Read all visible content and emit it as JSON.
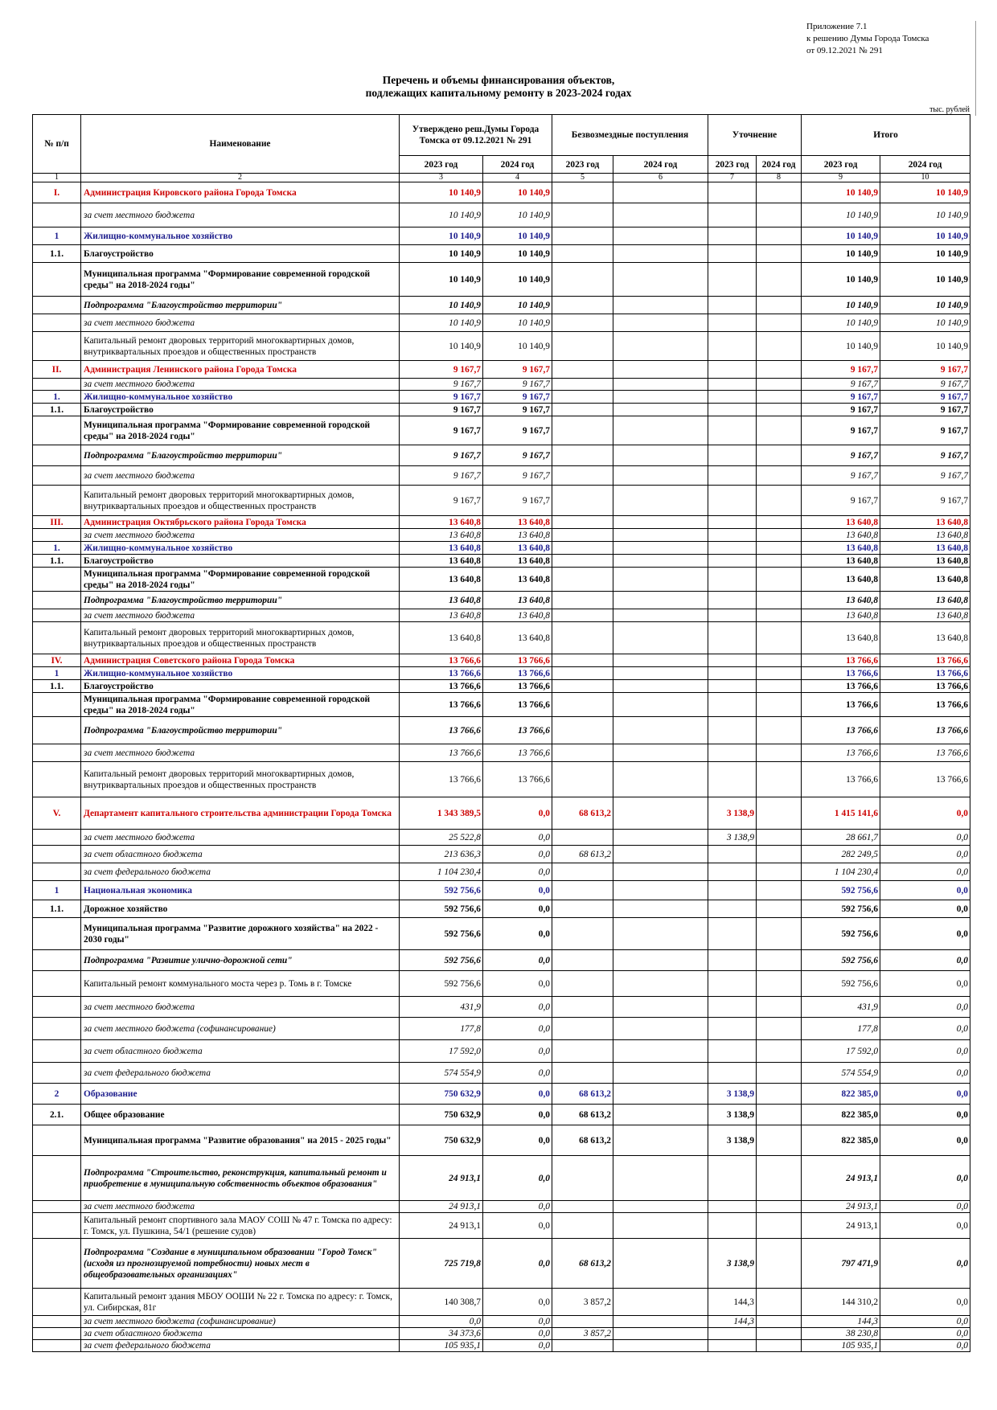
{
  "annex": {
    "line1": "Приложение 7.1",
    "line2": "к решению Думы Города Томска",
    "line3": "от  09.12.2021  № 291"
  },
  "title": {
    "line1": "Перечень и объемы финансирования объектов,",
    "line2": "подлежащих капитальному ремонту в 2023-2024 годах"
  },
  "units": "тыс. рублей",
  "header": {
    "col_no": "№ п/п",
    "col_name": "Наименование",
    "col_approved": "Утверждено реш.Думы Города Томска от 09.12.2021 № 291",
    "col_grants": "Безвозмездные поступления",
    "col_clarify": "Уточнение",
    "col_total": "Итого",
    "years": [
      "2023 год",
      "2024 год",
      "2023 год",
      "2024 год",
      "2023 год",
      "2024 год",
      "2023 год",
      "2024 год"
    ],
    "col_numbers": [
      "1",
      "2",
      "3",
      "4",
      "5",
      "6",
      "7",
      "8",
      "9",
      "10"
    ]
  },
  "rows": [
    {
      "s": "red",
      "h": 26,
      "no": "I.",
      "name": "Администрация Кировского района Города Томска",
      "v": [
        "10 140,9",
        "10 140,9",
        "",
        "",
        "",
        "",
        "10 140,9",
        "10 140,9"
      ]
    },
    {
      "s": "it",
      "h": 30,
      "no": "",
      "name": "за счет местного бюджета",
      "v": [
        "10 140,9",
        "10 140,9",
        "",
        "",
        "",
        "",
        "10 140,9",
        "10 140,9"
      ]
    },
    {
      "s": "blue",
      "h": 22,
      "no": "1",
      "name": "Жилищно-коммунальное хозяйство",
      "v": [
        "10 140,9",
        "10 140,9",
        "",
        "",
        "",
        "",
        "10 140,9",
        "10 140,9"
      ]
    },
    {
      "s": "bold",
      "h": 22,
      "no": "1.1.",
      "name": "Благоустройство",
      "v": [
        "10 140,9",
        "10 140,9",
        "",
        "",
        "",
        "",
        "10 140,9",
        "10 140,9"
      ]
    },
    {
      "s": "bold",
      "h": 42,
      "no": "",
      "name": "Муниципальная программа \"Формирование современной городской среды\" на 2018-2024 годы\"",
      "v": [
        "10 140,9",
        "10 140,9",
        "",
        "",
        "",
        "",
        "10 140,9",
        "10 140,9"
      ]
    },
    {
      "s": "bi",
      "h": 22,
      "no": "",
      "name": "Подпрограмма \"Благоустройство территории\"",
      "v": [
        "10 140,9",
        "10 140,9",
        "",
        "",
        "",
        "",
        "10 140,9",
        "10 140,9"
      ]
    },
    {
      "s": "it",
      "h": 22,
      "no": "",
      "name": "за счет местного бюджета",
      "v": [
        "10 140,9",
        "10 140,9",
        "",
        "",
        "",
        "",
        "10 140,9",
        "10 140,9"
      ]
    },
    {
      "s": "plain",
      "h": 36,
      "no": "",
      "name": "Капитальный ремонт дворовых территорий многоквартирных домов, внутриквартальных проездов и общественных пространств",
      "v": [
        "10 140,9",
        "10 140,9",
        "",
        "",
        "",
        "",
        "10 140,9",
        "10 140,9"
      ]
    },
    {
      "s": "red",
      "h": 22,
      "no": "II.",
      "name": "Администрация Ленинского района Города Томска",
      "v": [
        "9 167,7",
        "9 167,7",
        "",
        "",
        "",
        "",
        "9 167,7",
        "9 167,7"
      ]
    },
    {
      "s": "it",
      "h": 15,
      "no": "",
      "name": "за счет местного бюджета",
      "v": [
        "9 167,7",
        "9 167,7",
        "",
        "",
        "",
        "",
        "9 167,7",
        "9 167,7"
      ]
    },
    {
      "s": "blue",
      "h": 16,
      "no": "1.",
      "name": "Жилищно-коммунальное хозяйство",
      "v": [
        "9 167,7",
        "9 167,7",
        "",
        "",
        "",
        "",
        "9 167,7",
        "9 167,7"
      ]
    },
    {
      "s": "bold",
      "h": 16,
      "no": "1.1.",
      "name": "Благоустройство",
      "v": [
        "9 167,7",
        "9 167,7",
        "",
        "",
        "",
        "",
        "9 167,7",
        "9 167,7"
      ]
    },
    {
      "s": "bold",
      "h": 36,
      "no": "",
      "name": "Муниципальная программа \"Формирование современной городской среды\" на 2018-2024 годы\"",
      "v": [
        "9 167,7",
        "9 167,7",
        "",
        "",
        "",
        "",
        "9 167,7",
        "9 167,7"
      ]
    },
    {
      "s": "bi",
      "h": 26,
      "no": "",
      "name": "Подпрограмма \"Благоустройство территории\"",
      "v": [
        "9 167,7",
        "9 167,7",
        "",
        "",
        "",
        "",
        "9 167,7",
        "9 167,7"
      ]
    },
    {
      "s": "it",
      "h": 24,
      "no": "",
      "name": "за счет местного бюджета",
      "v": [
        "9 167,7",
        "9 167,7",
        "",
        "",
        "",
        "",
        "9 167,7",
        "9 167,7"
      ]
    },
    {
      "s": "plain",
      "h": 38,
      "no": "",
      "name": "Капитальный ремонт дворовых территорий многоквартирных домов, внутриквартальных проездов и общественных пространств",
      "v": [
        "9 167,7",
        "9 167,7",
        "",
        "",
        "",
        "",
        "9 167,7",
        "9 167,7"
      ]
    },
    {
      "s": "red",
      "h": 16,
      "no": "III.",
      "name": "Администрация Октябрьского района Города Томска",
      "v": [
        "13 640,8",
        "13 640,8",
        "",
        "",
        "",
        "",
        "13 640,8",
        "13 640,8"
      ]
    },
    {
      "s": "it",
      "h": 16,
      "no": "",
      "name": "за счет местного бюджета",
      "v": [
        "13 640,8",
        "13 640,8",
        "",
        "",
        "",
        "",
        "13 640,8",
        "13 640,8"
      ]
    },
    {
      "s": "blue",
      "h": 16,
      "no": "1.",
      "name": "Жилищно-коммунальное хозяйство",
      "v": [
        "13 640,8",
        "13 640,8",
        "",
        "",
        "",
        "",
        "13 640,8",
        "13 640,8"
      ]
    },
    {
      "s": "bold",
      "h": 16,
      "no": "1.1.",
      "name": "Благоустройство",
      "v": [
        "13 640,8",
        "13 640,8",
        "",
        "",
        "",
        "",
        "13 640,8",
        "13 640,8"
      ]
    },
    {
      "s": "bold",
      "h": 30,
      "no": "",
      "name": "Муниципальная программа \"Формирование современной городской среды\" на 2018-2024 годы\"",
      "v": [
        "13 640,8",
        "13 640,8",
        "",
        "",
        "",
        "",
        "13 640,8",
        "13 640,8"
      ]
    },
    {
      "s": "bi",
      "h": 22,
      "no": "",
      "name": "Подпрограмма \"Благоустройство территории\"",
      "v": [
        "13 640,8",
        "13 640,8",
        "",
        "",
        "",
        "",
        "13 640,8",
        "13 640,8"
      ]
    },
    {
      "s": "it",
      "h": 16,
      "no": "",
      "name": "за счет местного бюджета",
      "v": [
        "13 640,8",
        "13 640,8",
        "",
        "",
        "",
        "",
        "13 640,8",
        "13 640,8"
      ]
    },
    {
      "s": "plain",
      "h": 40,
      "no": "",
      "name": "Капитальный ремонт дворовых территорий многоквартирных домов, внутриквартальных проездов и общественных пространств",
      "v": [
        "13 640,8",
        "13 640,8",
        "",
        "",
        "",
        "",
        "13 640,8",
        "13 640,8"
      ]
    },
    {
      "s": "red",
      "h": 16,
      "no": "IV.",
      "name": "Администрация Советского района Города Томска",
      "v": [
        "13 766,6",
        "13 766,6",
        "",
        "",
        "",
        "",
        "13 766,6",
        "13 766,6"
      ]
    },
    {
      "s": "blue",
      "h": 16,
      "no": "1",
      "name": "Жилищно-коммунальное хозяйство",
      "v": [
        "13 766,6",
        "13 766,6",
        "",
        "",
        "",
        "",
        "13 766,6",
        "13 766,6"
      ]
    },
    {
      "s": "bold",
      "h": 16,
      "no": "1.1.",
      "name": "Благоустройство",
      "v": [
        "13 766,6",
        "13 766,6",
        "",
        "",
        "",
        "",
        "13 766,6",
        "13 766,6"
      ]
    },
    {
      "s": "bold",
      "h": 30,
      "no": "",
      "name": "Муниципальная программа \"Формирование современной городской среды\" на 2018-2024 годы\"",
      "v": [
        "13 766,6",
        "13 766,6",
        "",
        "",
        "",
        "",
        "13 766,6",
        "13 766,6"
      ]
    },
    {
      "s": "bi",
      "h": 34,
      "no": "",
      "name": "Подпрограмма \"Благоустройство территории\"",
      "v": [
        "13 766,6",
        "13 766,6",
        "",
        "",
        "",
        "",
        "13 766,6",
        "13 766,6"
      ]
    },
    {
      "s": "it",
      "h": 22,
      "no": "",
      "name": "за счет местного бюджета",
      "v": [
        "13 766,6",
        "13 766,6",
        "",
        "",
        "",
        "",
        "13 766,6",
        "13 766,6"
      ]
    },
    {
      "s": "plain",
      "h": 44,
      "no": "",
      "name": "Капитальный ремонт дворовых территорий многоквартирных домов, внутриквартальных проездов и общественных пространств",
      "v": [
        "13 766,6",
        "13 766,6",
        "",
        "",
        "",
        "",
        "13 766,6",
        "13 766,6"
      ]
    },
    {
      "s": "red",
      "h": 40,
      "no": "V.",
      "name": "Департамент капитального строительства администрации Города Томска",
      "v": [
        "1 343 389,5",
        "0,0",
        "68 613,2",
        "",
        "3 138,9",
        "",
        "1 415 141,6",
        "0,0"
      ]
    },
    {
      "s": "it",
      "h": 20,
      "no": "",
      "name": "за счет местного бюджета",
      "v": [
        "25 522,8",
        "0,0",
        "",
        "",
        "3 138,9",
        "",
        "28 661,7",
        "0,0"
      ]
    },
    {
      "s": "it",
      "h": 22,
      "no": "",
      "name": "за счет областного бюджета",
      "v": [
        "213 636,3",
        "0,0",
        "68 613,2",
        "",
        "",
        "",
        "282 249,5",
        "0,0"
      ]
    },
    {
      "s": "it",
      "h": 22,
      "no": "",
      "name": "за счет федерального бюджета",
      "v": [
        "1 104 230,4",
        "0,0",
        "",
        "",
        "",
        "",
        "1 104 230,4",
        "0,0"
      ]
    },
    {
      "s": "blue",
      "h": 24,
      "no": "1",
      "name": "Национальная экономика",
      "v": [
        "592 756,6",
        "0,0",
        "",
        "",
        "",
        "",
        "592 756,6",
        "0,0"
      ]
    },
    {
      "s": "bold",
      "h": 22,
      "no": "1.1.",
      "name": "Дорожное хозяйство",
      "v": [
        "592 756,6",
        "0,0",
        "",
        "",
        "",
        "",
        "592 756,6",
        "0,0"
      ]
    },
    {
      "s": "bold",
      "h": 40,
      "no": "",
      "name": "Муниципальная программа \"Развитие дорожного хозяйства\" на 2022 - 2030 годы\"",
      "v": [
        "592 756,6",
        "0,0",
        "",
        "",
        "",
        "",
        "592 756,6",
        "0,0"
      ]
    },
    {
      "s": "bi",
      "h": 26,
      "no": "",
      "name": "Подпрограмма \"Развитие улично-дорожной сети\"",
      "v": [
        "592 756,6",
        "0,0",
        "",
        "",
        "",
        "",
        "592 756,6",
        "0,0"
      ]
    },
    {
      "s": "plain",
      "h": 32,
      "no": "",
      "name": "Капитальный ремонт коммунального моста через р. Томь в г. Томске",
      "v": [
        "592 756,6",
        "0,0",
        "",
        "",
        "",
        "",
        "592 756,6",
        "0,0"
      ]
    },
    {
      "s": "it",
      "h": 26,
      "no": "",
      "name": "за счет местного бюджета",
      "v": [
        "431,9",
        "0,0",
        "",
        "",
        "",
        "",
        "431,9",
        "0,0"
      ]
    },
    {
      "s": "it",
      "h": 28,
      "no": "",
      "name": "за счет местного бюджета (софинансирование)",
      "v": [
        "177,8",
        "0,0",
        "",
        "",
        "",
        "",
        "177,8",
        "0,0"
      ]
    },
    {
      "s": "it",
      "h": 28,
      "no": "",
      "name": "за счет областного бюджета",
      "v": [
        "17 592,0",
        "0,0",
        "",
        "",
        "",
        "",
        "17 592,0",
        "0,0"
      ]
    },
    {
      "s": "it",
      "h": 26,
      "no": "",
      "name": "за счет федерального бюджета",
      "v": [
        "574 554,9",
        "0,0",
        "",
        "",
        "",
        "",
        "574 554,9",
        "0,0"
      ]
    },
    {
      "s": "blue",
      "h": 26,
      "no": "2",
      "name": "Образование",
      "v": [
        "750 632,9",
        "0,0",
        "68 613,2",
        "",
        "3 138,9",
        "",
        "822 385,0",
        "0,0"
      ]
    },
    {
      "s": "bold",
      "h": 26,
      "no": "2.1.",
      "name": "Общее образование",
      "v": [
        "750 632,9",
        "0,0",
        "68 613,2",
        "",
        "3 138,9",
        "",
        "822 385,0",
        "0,0"
      ]
    },
    {
      "s": "bold",
      "h": 38,
      "no": "",
      "name": "Муниципальная программа \"Развитие образования\" на 2015 - 2025 годы\"",
      "v": [
        "750 632,9",
        "0,0",
        "68 613,2",
        "",
        "3 138,9",
        "",
        "822 385,0",
        "0,0"
      ]
    },
    {
      "s": "bi",
      "h": 56,
      "no": "",
      "name": "Подпрограмма \"Строительство, реконструкция, капитальный ремонт и приобретение в муниципальную собственность объектов образования\"",
      "v": [
        "24 913,1",
        "0,0",
        "",
        "",
        "",
        "",
        "24 913,1",
        "0,0"
      ]
    },
    {
      "s": "it",
      "h": 14,
      "no": "",
      "name": "за счет местного бюджета",
      "v": [
        "24 913,1",
        "0,0",
        "",
        "",
        "",
        "",
        "24 913,1",
        "0,0"
      ]
    },
    {
      "s": "plain",
      "h": 32,
      "no": "",
      "name": "Капитальный ремонт спортивного зала МАОУ СОШ № 47 г. Томска по адресу: г. Томск, ул. Пушкина, 54/1 (решение судов)",
      "v": [
        "24 913,1",
        "0,0",
        "",
        "",
        "",
        "",
        "24 913,1",
        "0,0"
      ]
    },
    {
      "s": "bi",
      "h": 62,
      "no": "",
      "name": "Подпрограмма \"Создание в муниципальном образовании \"Город Томск\" (исходя из прогнозируемой потребности) новых мест в общеобразовательных организациях\"",
      "v": [
        "725 719,8",
        "0,0",
        "68 613,2",
        "",
        "3 138,9",
        "",
        "797 471,9",
        "0,0"
      ]
    },
    {
      "s": "plain",
      "h": 34,
      "no": "",
      "name": "Капитальный ремонт здания МБОУ ООШИ № 22 г. Томска по адресу: г. Томск, ул. Сибирская, 81г",
      "v": [
        "140 308,7",
        "0,0",
        "3 857,2",
        "",
        "144,3",
        "",
        "144 310,2",
        "0,0"
      ]
    },
    {
      "s": "it",
      "h": 14,
      "no": "",
      "name": "за счет местного бюджета (софинансирование)",
      "v": [
        "0,0",
        "0,0",
        "",
        "",
        "144,3",
        "",
        "144,3",
        "0,0"
      ]
    },
    {
      "s": "it",
      "h": 14,
      "no": "",
      "name": "за счет областного бюджета",
      "v": [
        "34 373,6",
        "0,0",
        "3 857,2",
        "",
        "",
        "",
        "38 230,8",
        "0,0"
      ]
    },
    {
      "s": "it",
      "h": 14,
      "no": "",
      "name": "за счет федерального бюджета",
      "v": [
        "105 935,1",
        "0,0",
        "",
        "",
        "",
        "",
        "105 935,1",
        "0,0"
      ]
    }
  ]
}
